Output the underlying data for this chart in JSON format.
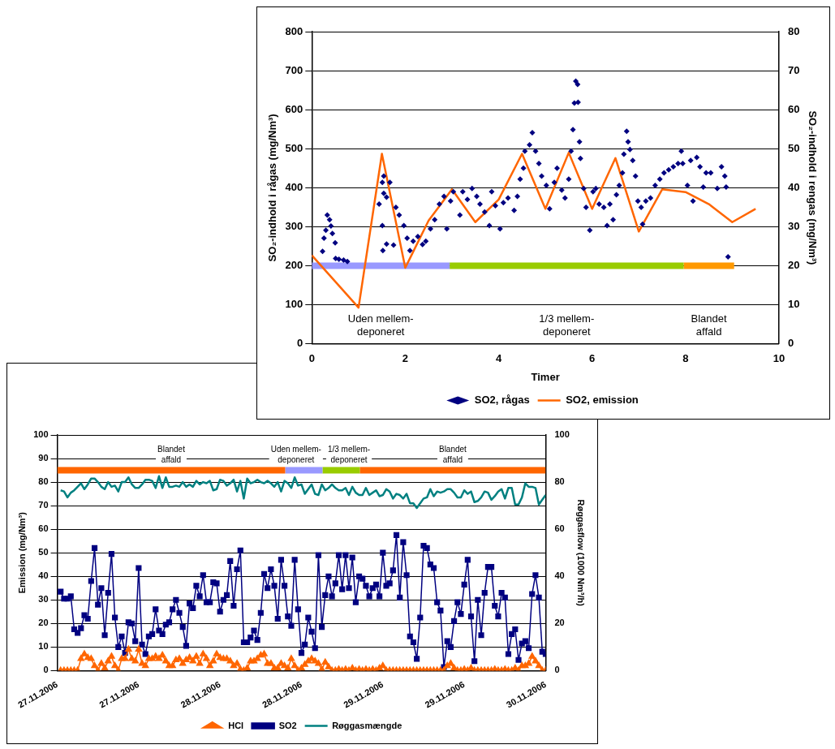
{
  "chart_data": [
    {
      "type": "scatter",
      "xlabel": "Timer",
      "ylabel": "SO₂-indhold i rågas (mg/Nm³)",
      "y2label": "SO₂-indhold i rengas (mg/Nm³)",
      "xlim": [
        0,
        10
      ],
      "xticks": [
        0,
        2,
        4,
        6,
        8,
        10
      ],
      "ylim": [
        0,
        800
      ],
      "yticks": [
        0,
        100,
        200,
        300,
        400,
        500,
        600,
        700,
        800
      ],
      "y2lim": [
        0,
        80
      ],
      "y2ticks": [
        0,
        10,
        20,
        30,
        40,
        50,
        60,
        70,
        80
      ],
      "grid": "y",
      "legend": "bottom",
      "annotations": [
        "Uden mellem-\ndeponeret",
        "1/3 mellem-\ndeponeret",
        "Blandet\naffald"
      ],
      "series": [
        {
          "name": "SO2, rågas",
          "marker": "diamond",
          "color": "#000080",
          "x": [
            0.23,
            0.26,
            0.3,
            0.33,
            0.38,
            0.41,
            0.44,
            0.5,
            0.51,
            0.58,
            0.68,
            0.76,
            1.44,
            1.51,
            1.54,
            1.67,
            1.54,
            1.51,
            1.52,
            1.6,
            1.75,
            1.6,
            1.8,
            1.87,
            1.97,
            2.04,
            2.1,
            2.17,
            2.27,
            2.37,
            2.44,
            2.54,
            2.63,
            2.73,
            2.83,
            2.89,
            2.97,
            3.03,
            3.17,
            3.23,
            3.33,
            3.43,
            3.53,
            3.6,
            3.7,
            3.8,
            3.85,
            3.93,
            4.03,
            4.1,
            4.2,
            4.33,
            4.4,
            4.46,
            4.53,
            4.56,
            4.66,
            4.72,
            4.79,
            4.86,
            4.92,
            5.02,
            5.09,
            5.19,
            5.25,
            5.35,
            5.42,
            5.5,
            5.55,
            5.59,
            5.62,
            5.65,
            5.69,
            5.7,
            5.73,
            5.75,
            5.82,
            5.87,
            5.95,
            6.02,
            6.08,
            6.15,
            6.25,
            6.32,
            6.38,
            6.45,
            6.52,
            6.58,
            6.65,
            6.68,
            6.74,
            6.77,
            6.81,
            6.87,
            6.93,
            6.98,
            7.05,
            7.08,
            7.15,
            7.25,
            7.35,
            7.45,
            7.54,
            7.64,
            7.74,
            7.84,
            7.91,
            7.94,
            8.04,
            8.11,
            8.16,
            8.24,
            8.31,
            8.38,
            8.44,
            8.54,
            8.68,
            8.77,
            8.84,
            8.87,
            8.91
          ],
          "values": [
            237,
            271,
            291,
            330,
            318,
            302,
            283,
            259,
            219,
            217,
            215,
            211,
            358,
            414,
            430,
            414,
            386,
            303,
            239,
            256,
            253,
            376,
            350,
            330,
            303,
            271,
            239,
            263,
            275,
            255,
            263,
            295,
            318,
            358,
            378,
            295,
            366,
            390,
            330,
            390,
            370,
            398,
            378,
            358,
            338,
            303,
            390,
            354,
            295,
            362,
            374,
            342,
            378,
            422,
            450,
            494,
            510,
            541,
            494,
            462,
            430,
            406,
            346,
            414,
            450,
            394,
            374,
            422,
            494,
            549,
            617,
            673,
            665,
            619,
            518,
            475,
            398,
            350,
            291,
            390,
            398,
            358,
            350,
            303,
            358,
            318,
            382,
            406,
            438,
            486,
            545,
            518,
            498,
            470,
            430,
            366,
            350,
            307,
            366,
            374,
            406,
            422,
            438,
            446,
            454,
            462,
            494,
            462,
            406,
            470,
            366,
            478,
            454,
            402,
            438,
            438,
            398,
            454,
            430,
            402,
            223
          ]
        },
        {
          "name": "SO2, emission",
          "type": "line",
          "marker": "none",
          "axis": "y2",
          "color": "#ff6600",
          "x": [
            0,
            1,
            1.5,
            2,
            2.5,
            3,
            3.5,
            4,
            4.5,
            5,
            5.5,
            6,
            6.5,
            7,
            7.5,
            8,
            8.5,
            9,
            9.5
          ],
          "values": [
            22.7,
            9.3,
            48.7,
            19.5,
            31.6,
            39.6,
            31.2,
            37,
            48.7,
            34.6,
            49,
            34.6,
            47.6,
            28.8,
            39.6,
            38.9,
            35.8,
            31.2,
            34.6
          ]
        },
        {
          "type": "line",
          "marker": "none",
          "color": "#9999ff",
          "x": [
            0,
            2.95
          ],
          "values": [
            200,
            200
          ]
        },
        {
          "type": "line",
          "marker": "none",
          "color": "#99cc00",
          "x": [
            2.95,
            7.96
          ],
          "values": [
            200,
            200
          ]
        },
        {
          "type": "line",
          "marker": "none",
          "color": "#ff9900",
          "x": [
            7.96,
            9.04
          ],
          "values": [
            200,
            200
          ]
        }
      ]
    },
    {
      "type": "line",
      "ylabel": "Emission (mg/Nm³)",
      "y2label": "Røggasflow (1000 Nm³/h)",
      "xlim": [
        "2006-11-27T00:00",
        "2006-11-30T00:00"
      ],
      "xticks": [
        {
          "value": "2006-11-27T00:00",
          "label": "27.11.2006"
        },
        {
          "value": "2006-11-27T12:00",
          "label": "27.11.2006"
        },
        {
          "value": "2006-11-28T00:00",
          "label": "28.11.2006"
        },
        {
          "value": "2006-11-28T12:00",
          "label": "28.11.2006"
        },
        {
          "value": "2006-11-29T00:00",
          "label": "29.11.2006"
        },
        {
          "value": "2006-11-29T12:00",
          "label": "29.11.2006"
        },
        {
          "value": "2006-11-30T00:00",
          "label": "30.11.2006"
        }
      ],
      "ylim": [
        0,
        100
      ],
      "yticks": [
        0,
        10,
        20,
        30,
        40,
        50,
        60,
        70,
        80,
        90,
        100
      ],
      "y2lim": [
        0,
        100
      ],
      "y2ticks": [
        0,
        20,
        40,
        60,
        80,
        100
      ],
      "grid": "y",
      "legend": "bottom",
      "annotations": [
        "Blandet\naffald",
        "Uden mellem-\ndeponeret",
        "1/3 mellem-\ndeponeret",
        "Blandet\naffald"
      ],
      "x": [
        "2006-11-27T00:30",
        "2006-11-27T01:00",
        "2006-11-27T01:30",
        "2006-11-27T02:00",
        "2006-11-27T02:30",
        "2006-11-27T03:00",
        "2006-11-27T03:30",
        "2006-11-27T04:00",
        "2006-11-27T04:30",
        "2006-11-27T05:00",
        "2006-11-27T05:30",
        "2006-11-27T06:00",
        "2006-11-27T06:30",
        "2006-11-27T07:00",
        "2006-11-27T07:30",
        "2006-11-27T08:00",
        "2006-11-27T08:30",
        "2006-11-27T09:00",
        "2006-11-27T09:30",
        "2006-11-27T10:00",
        "2006-11-27T10:30",
        "2006-11-27T11:00",
        "2006-11-27T11:30",
        "2006-11-27T12:00",
        "2006-11-27T12:30",
        "2006-11-27T13:00",
        "2006-11-27T13:30",
        "2006-11-27T14:00",
        "2006-11-27T14:30",
        "2006-11-27T15:00",
        "2006-11-27T15:30",
        "2006-11-27T16:00",
        "2006-11-27T16:30",
        "2006-11-27T17:00",
        "2006-11-27T17:30",
        "2006-11-27T18:00",
        "2006-11-27T18:30",
        "2006-11-27T19:00",
        "2006-11-27T19:30",
        "2006-11-27T20:00",
        "2006-11-27T20:30",
        "2006-11-27T21:00",
        "2006-11-27T21:30",
        "2006-11-27T22:00",
        "2006-11-27T22:30",
        "2006-11-27T23:00",
        "2006-11-27T23:30",
        "2006-11-28T00:00",
        "2006-11-28T00:30",
        "2006-11-28T01:00",
        "2006-11-28T01:30",
        "2006-11-28T02:00",
        "2006-11-28T02:30",
        "2006-11-28T03:00",
        "2006-11-28T03:30",
        "2006-11-28T04:00",
        "2006-11-28T04:30",
        "2006-11-28T05:00",
        "2006-11-28T05:30",
        "2006-11-28T06:00",
        "2006-11-28T06:30",
        "2006-11-28T07:00",
        "2006-11-28T07:30",
        "2006-11-28T08:00",
        "2006-11-28T08:30",
        "2006-11-28T09:00",
        "2006-11-28T09:30",
        "2006-11-28T10:00",
        "2006-11-28T10:30",
        "2006-11-28T11:00",
        "2006-11-28T11:30",
        "2006-11-28T12:00",
        "2006-11-28T12:30",
        "2006-11-28T13:00",
        "2006-11-28T13:30",
        "2006-11-28T14:00",
        "2006-11-28T14:30",
        "2006-11-28T15:00",
        "2006-11-28T15:30",
        "2006-11-28T16:00",
        "2006-11-28T16:30",
        "2006-11-28T17:00",
        "2006-11-28T17:30",
        "2006-11-28T18:00",
        "2006-11-28T18:30",
        "2006-11-28T19:00",
        "2006-11-28T19:30",
        "2006-11-28T20:00",
        "2006-11-28T20:30",
        "2006-11-28T21:00",
        "2006-11-28T21:30",
        "2006-11-28T22:00",
        "2006-11-28T22:30",
        "2006-11-28T23:00",
        "2006-11-28T23:30",
        "2006-11-29T00:00",
        "2006-11-29T00:30",
        "2006-11-29T01:00",
        "2006-11-29T01:30",
        "2006-11-29T02:00",
        "2006-11-29T02:30",
        "2006-11-29T03:00",
        "2006-11-29T03:30",
        "2006-11-29T04:00",
        "2006-11-29T04:30",
        "2006-11-29T05:00",
        "2006-11-29T05:30",
        "2006-11-29T06:00",
        "2006-11-29T06:30",
        "2006-11-29T07:00",
        "2006-11-29T07:30",
        "2006-11-29T08:00",
        "2006-11-29T08:30",
        "2006-11-29T09:00",
        "2006-11-29T09:30",
        "2006-11-29T10:00",
        "2006-11-29T10:30",
        "2006-11-29T11:00",
        "2006-11-29T11:30",
        "2006-11-29T12:00",
        "2006-11-29T12:30",
        "2006-11-29T13:00",
        "2006-11-29T13:30",
        "2006-11-29T14:00",
        "2006-11-29T14:30",
        "2006-11-29T15:00",
        "2006-11-29T15:30",
        "2006-11-29T16:00",
        "2006-11-29T16:30",
        "2006-11-29T17:00",
        "2006-11-29T17:30",
        "2006-11-29T18:00",
        "2006-11-29T18:30",
        "2006-11-29T19:00",
        "2006-11-29T19:30",
        "2006-11-29T20:00",
        "2006-11-29T20:30",
        "2006-11-29T21:00",
        "2006-11-29T21:30",
        "2006-11-29T22:00",
        "2006-11-29T22:30",
        "2006-11-29T23:00",
        "2006-11-29T23:30",
        "2006-11-30T00:00"
      ],
      "series": [
        {
          "name": "HCl",
          "marker": "triangle",
          "color": "#ff6600",
          "values": [
            0,
            0,
            0,
            0,
            0,
            0,
            5,
            7,
            5.5,
            5,
            2,
            0,
            3,
            1,
            4,
            6,
            2,
            0,
            5,
            5,
            9,
            5,
            4,
            9,
            3,
            2,
            5,
            5,
            6,
            5,
            6.5,
            4,
            2,
            2,
            4.5,
            5,
            3,
            4.5,
            5.5,
            4,
            6,
            3,
            7,
            5,
            2,
            4,
            7,
            5.5,
            5,
            5,
            4,
            2,
            3,
            0.5,
            0,
            1,
            4,
            4,
            5,
            6.5,
            7,
            3,
            3,
            1,
            1,
            3,
            2,
            1,
            5,
            2,
            0,
            1,
            2.5,
            4,
            5,
            4,
            3,
            0.5,
            3.5,
            1.5,
            0,
            0,
            0.5,
            0,
            0.5,
            0,
            1,
            0,
            0.5,
            0,
            0.5,
            0,
            0.5,
            0,
            1,
            2,
            0,
            0,
            0,
            0,
            0,
            0,
            0,
            0,
            0,
            0,
            0,
            0,
            0,
            0,
            0,
            0,
            0,
            0,
            2,
            3,
            1,
            0,
            0,
            0.5,
            0,
            1,
            0,
            0,
            0,
            0,
            0,
            0,
            0.5,
            0,
            0,
            0.5,
            0,
            0,
            1,
            0,
            2,
            2,
            3,
            6,
            4,
            2,
            0,
            0
          ]
        },
        {
          "name": "SO2",
          "marker": "square",
          "color": "#000080",
          "values": [
            33.5,
            30.5,
            30.5,
            31.5,
            17.5,
            16,
            18,
            23.5,
            22,
            38,
            52,
            28,
            35,
            15,
            33,
            49.5,
            22.5,
            10,
            14.5,
            7.5,
            20.5,
            20,
            12.5,
            43.5,
            11,
            7,
            14.5,
            15.5,
            26,
            17,
            15.5,
            19.5,
            20.5,
            26,
            30,
            24.5,
            18.5,
            10.5,
            28.5,
            26.5,
            36,
            31.5,
            40.5,
            29,
            29,
            37.5,
            37,
            25,
            30,
            32,
            46.5,
            27.5,
            43,
            51,
            12,
            12,
            14,
            17,
            13,
            24.5,
            41,
            35,
            43,
            36,
            22,
            47,
            36,
            23,
            19,
            47,
            26,
            7.5,
            11,
            22.5,
            16.5,
            9.5,
            49,
            18.5,
            32,
            40,
            31.5,
            37,
            49,
            34.5,
            49,
            35,
            48,
            29,
            40,
            39,
            36,
            31.5,
            35,
            36.5,
            31.5,
            50,
            36,
            37,
            42.5,
            57.5,
            31,
            54.5,
            40.5,
            14.5,
            12,
            5,
            22.5,
            53,
            52,
            45,
            43.5,
            29,
            25.5,
            1.5,
            12.5,
            10,
            21,
            29,
            24,
            36.5,
            47,
            23,
            4,
            30,
            15,
            33,
            44,
            44,
            27.5,
            23,
            33,
            31,
            7,
            15.5,
            17.5,
            4.5,
            11.5,
            12.5,
            9.5,
            32.5,
            40.5,
            31,
            8,
            7
          ]
        },
        {
          "name": "Røggasmængde",
          "marker": "none",
          "axis": "y2",
          "color": "#008080",
          "values": [
            76.5,
            76,
            73.5,
            75.5,
            76.5,
            78,
            79.5,
            77,
            79,
            81.5,
            81.5,
            80,
            78,
            77,
            80,
            78,
            78.5,
            76,
            80,
            80,
            82,
            79,
            77.5,
            77.5,
            79,
            81,
            81,
            80.5,
            77.5,
            82.5,
            77.5,
            82,
            78,
            78,
            78.5,
            78,
            80,
            78,
            79,
            78,
            80.5,
            79,
            80,
            79.5,
            80.5,
            76.5,
            77,
            81,
            80.5,
            78.5,
            79.5,
            81,
            76,
            80.5,
            73,
            81.5,
            79.5,
            80,
            81,
            80,
            79.5,
            80.5,
            79.5,
            78,
            80,
            76,
            80.5,
            79.5,
            77.5,
            82,
            78.5,
            79,
            75,
            77,
            79,
            75,
            74.5,
            79,
            76.5,
            77.5,
            79,
            77.5,
            76.5,
            76.5,
            77.5,
            74.5,
            78,
            75.5,
            74.5,
            74.5,
            77.5,
            74.5,
            75.5,
            76.5,
            74,
            74.5,
            77,
            76,
            73,
            75,
            74.5,
            73,
            75,
            71,
            71,
            69,
            71,
            73,
            73.5,
            77,
            74,
            76,
            75.5,
            76,
            77,
            77,
            75.5,
            73.5,
            73.5,
            76.5,
            75,
            76,
            71.5,
            72,
            73.5,
            76,
            75.5,
            72.5,
            74,
            76,
            77,
            73,
            77.5,
            77.5,
            70.5,
            70.5,
            73.5,
            79.5,
            78,
            78,
            77.5,
            70.5,
            72.5,
            74.5
          ]
        },
        {
          "type": "line",
          "marker": "none",
          "color": "#ff6600",
          "x": [
            "2006-11-27T00:00",
            "2006-11-28T09:36"
          ],
          "values": [
            85,
            85
          ]
        },
        {
          "type": "line",
          "marker": "none",
          "color": "#9999ff",
          "x": [
            "2006-11-28T09:36",
            "2006-11-28T15:06"
          ],
          "values": [
            85,
            85
          ]
        },
        {
          "type": "line",
          "marker": "none",
          "color": "#99cc00",
          "x": [
            "2006-11-28T15:06",
            "2006-11-28T20:36"
          ],
          "values": [
            85,
            85
          ]
        },
        {
          "type": "line",
          "marker": "none",
          "color": "#ff6600",
          "x": [
            "2006-11-28T20:36",
            "2006-11-30T00:00"
          ],
          "values": [
            85,
            85
          ]
        }
      ]
    }
  ]
}
